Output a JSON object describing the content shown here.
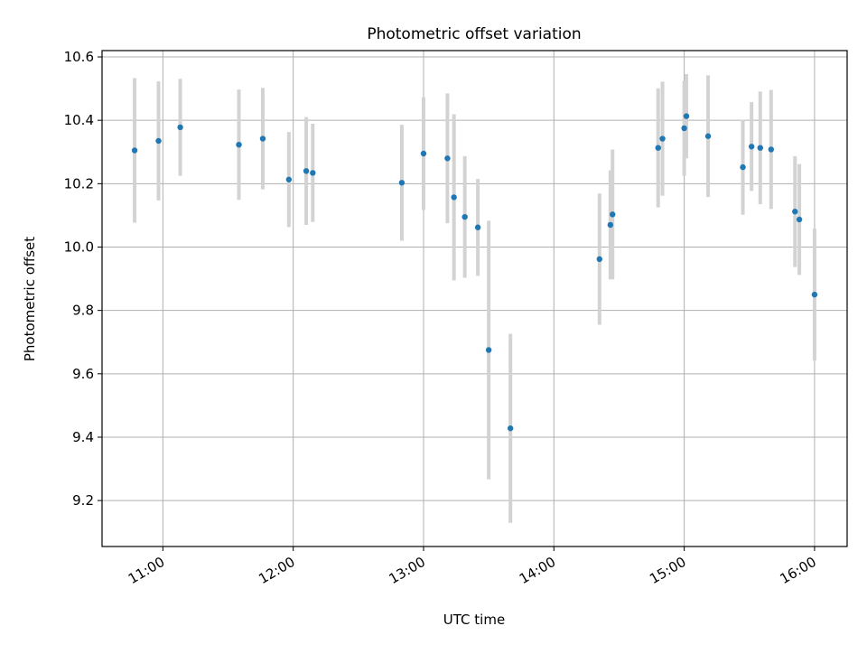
{
  "chart_data": {
    "type": "scatter",
    "title": "Photometric offset variation",
    "xlabel": "UTC time",
    "ylabel": "Photometric offset",
    "x_tick_labels": [
      "11:00",
      "12:00",
      "13:00",
      "14:00",
      "15:00",
      "16:00"
    ],
    "x_ticks": [
      "11:00",
      "12:00",
      "13:00",
      "14:00",
      "15:00",
      "16:00"
    ],
    "y_ticks": [
      9.2,
      9.4,
      9.6,
      9.8,
      10.0,
      10.2,
      10.4,
      10.6
    ],
    "y_tick_labels": [
      "9.2",
      "9.4",
      "9.6",
      "9.8",
      "10.0",
      "10.2",
      "10.4",
      "10.6"
    ],
    "xlim": [
      "10:32",
      "16:15"
    ],
    "ylim": [
      9.055,
      10.62
    ],
    "grid": true,
    "marker_color": "#1f77b4",
    "errorbar_color": "#d3d3d3",
    "points": [
      {
        "x": "10:47",
        "y": 10.305,
        "err": 0.228
      },
      {
        "x": "10:58",
        "y": 10.335,
        "err": 0.188
      },
      {
        "x": "11:08",
        "y": 10.378,
        "err": 0.153
      },
      {
        "x": "11:35",
        "y": 10.323,
        "err": 0.174
      },
      {
        "x": "11:46",
        "y": 10.342,
        "err": 0.16
      },
      {
        "x": "11:58",
        "y": 10.213,
        "err": 0.15
      },
      {
        "x": "12:06",
        "y": 10.24,
        "err": 0.17
      },
      {
        "x": "12:09",
        "y": 10.234,
        "err": 0.155
      },
      {
        "x": "12:50",
        "y": 10.203,
        "err": 0.183
      },
      {
        "x": "13:00",
        "y": 10.295,
        "err": 0.178
      },
      {
        "x": "13:11",
        "y": 10.28,
        "err": 0.205
      },
      {
        "x": "13:14",
        "y": 10.157,
        "err": 0.262
      },
      {
        "x": "13:19",
        "y": 10.095,
        "err": 0.192
      },
      {
        "x": "13:25",
        "y": 10.062,
        "err": 0.153
      },
      {
        "x": "13:30",
        "y": 9.675,
        "err": 0.408
      },
      {
        "x": "13:40",
        "y": 9.428,
        "err": 0.298
      },
      {
        "x": "14:21",
        "y": 9.962,
        "err": 0.207
      },
      {
        "x": "14:26",
        "y": 10.07,
        "err": 0.172
      },
      {
        "x": "14:27",
        "y": 10.103,
        "err": 0.205
      },
      {
        "x": "14:48",
        "y": 10.313,
        "err": 0.188
      },
      {
        "x": "14:50",
        "y": 10.342,
        "err": 0.18
      },
      {
        "x": "15:00",
        "y": 10.375,
        "err": 0.15
      },
      {
        "x": "15:01",
        "y": 10.413,
        "err": 0.133
      },
      {
        "x": "15:11",
        "y": 10.35,
        "err": 0.192
      },
      {
        "x": "15:27",
        "y": 10.252,
        "err": 0.15
      },
      {
        "x": "15:31",
        "y": 10.317,
        "err": 0.14
      },
      {
        "x": "15:35",
        "y": 10.313,
        "err": 0.178
      },
      {
        "x": "15:40",
        "y": 10.308,
        "err": 0.188
      },
      {
        "x": "15:51",
        "y": 10.112,
        "err": 0.175
      },
      {
        "x": "15:53",
        "y": 10.087,
        "err": 0.175
      },
      {
        "x": "16:00",
        "y": 9.85,
        "err": 0.208
      }
    ]
  }
}
